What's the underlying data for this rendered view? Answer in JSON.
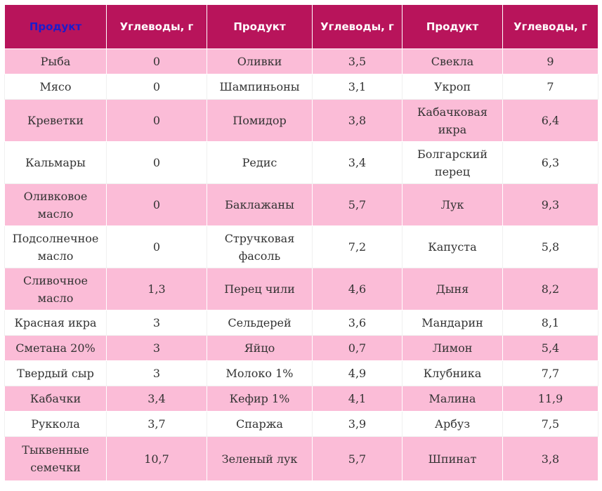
{
  "headers": [
    "Продукт",
    "Углеводы, г",
    "Продукт",
    "Углеводы, г",
    "Продукт",
    "Углеводы, г"
  ],
  "rows": [
    [
      "Рыба",
      "0",
      "Оливки",
      "3,5",
      "Свекла",
      "9"
    ],
    [
      "Мясо",
      "0",
      "Шампиньоны",
      "3,1",
      "Укроп",
      "7"
    ],
    [
      "Креветки",
      "0",
      "Помидор",
      "3,8",
      "Кабачковая икра",
      "6,4"
    ],
    [
      "Кальмары",
      "0",
      "Редис",
      "3,4",
      "Болгарский перец",
      "6,3"
    ],
    [
      "Оливковое масло",
      "0",
      "Баклажаны",
      "5,7",
      "Лук",
      "9,3"
    ],
    [
      "Подсолнечное масло",
      "0",
      "Стручковая фасоль",
      "7,2",
      "Капуста",
      "5,8"
    ],
    [
      "Сливочное масло",
      "1,3",
      "Перец чили",
      "4,6",
      "Дыня",
      "8,2"
    ],
    [
      "Красная икра",
      "3",
      "Сельдерей",
      "3,6",
      "Мандарин",
      "8,1"
    ],
    [
      "Сметана 20%",
      "3",
      "Яйцо",
      "0,7",
      "Лимон",
      "5,4"
    ],
    [
      "Твердый сыр",
      "3",
      "Молоко 1%",
      "4,9",
      "Клубника",
      "7,7"
    ],
    [
      "Кабачки",
      "3,4",
      "Кефир 1%",
      "4,1",
      "Малина",
      "11,9"
    ],
    [
      "Руккола",
      "3,7",
      "Спаржа",
      "3,9",
      "Арбуз",
      "7,5"
    ],
    [
      "Тыквенные семечки",
      "10,7",
      "Зеленый лук",
      "5,7",
      "Шпинат",
      "3,8"
    ]
  ],
  "colors": {
    "header_bg": "#b8145b",
    "header_text": "#ffffff",
    "first_header_text": "#1c1ccc",
    "row_pink": "#fbbcd7",
    "row_white": "#ffffff",
    "cell_text": "#333333"
  }
}
